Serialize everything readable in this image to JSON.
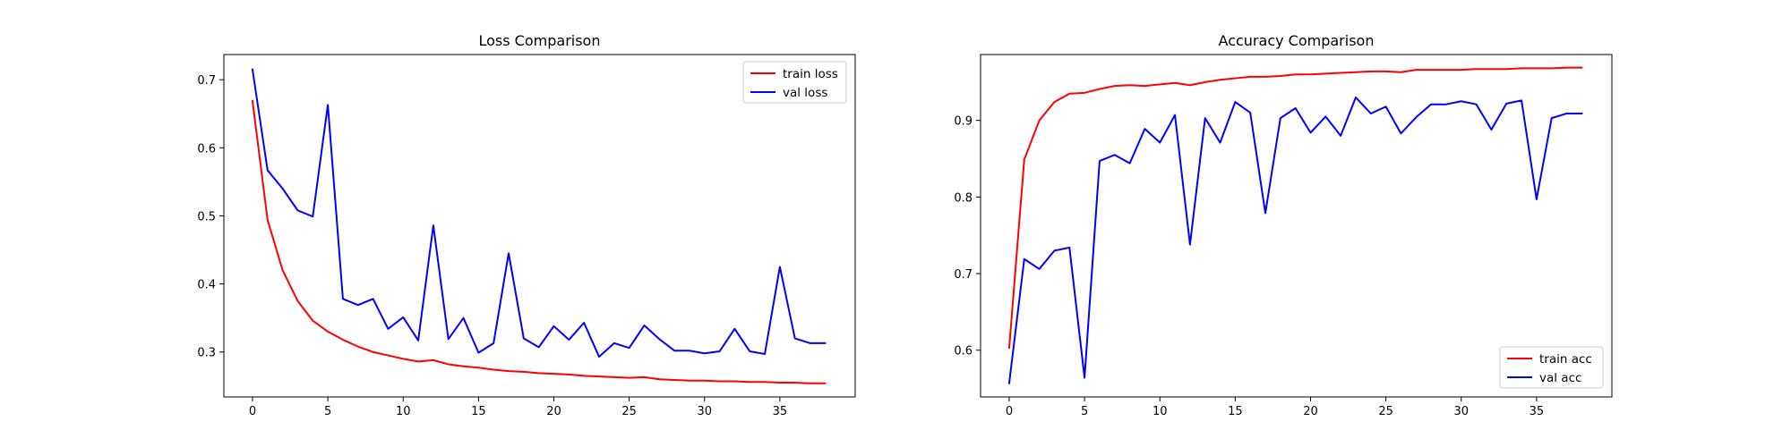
{
  "chart_data": [
    {
      "type": "line",
      "title": "Loss Comparison",
      "xlabel": "",
      "ylabel": "",
      "xlim": [
        -1.9,
        40
      ],
      "ylim": [
        0.234,
        0.737
      ],
      "xticks": [
        0,
        5,
        10,
        15,
        20,
        25,
        30,
        35
      ],
      "yticks": [
        0.3,
        0.4,
        0.5,
        0.6,
        0.7
      ],
      "grid": false,
      "legend": {
        "position": "top-right"
      },
      "x": [
        0,
        1,
        2,
        3,
        4,
        5,
        6,
        7,
        8,
        9,
        10,
        11,
        12,
        13,
        14,
        15,
        16,
        17,
        18,
        19,
        20,
        21,
        22,
        23,
        24,
        25,
        26,
        27,
        28,
        29,
        30,
        31,
        32,
        33,
        34,
        35,
        36,
        37,
        38
      ],
      "series": [
        {
          "name": "train loss",
          "color": "#ff0000",
          "values": [
            0.669,
            0.494,
            0.42,
            0.375,
            0.346,
            0.33,
            0.318,
            0.308,
            0.3,
            0.295,
            0.29,
            0.286,
            0.288,
            0.282,
            0.279,
            0.277,
            0.274,
            0.272,
            0.271,
            0.269,
            0.268,
            0.267,
            0.265,
            0.264,
            0.263,
            0.262,
            0.263,
            0.26,
            0.259,
            0.258,
            0.258,
            0.257,
            0.257,
            0.256,
            0.256,
            0.255,
            0.255,
            0.254,
            0.254
          ]
        },
        {
          "name": "val loss",
          "color": "#0000ff",
          "values": [
            0.715,
            0.567,
            0.54,
            0.508,
            0.499,
            0.663,
            0.378,
            0.369,
            0.378,
            0.334,
            0.351,
            0.317,
            0.486,
            0.319,
            0.35,
            0.299,
            0.313,
            0.445,
            0.32,
            0.307,
            0.338,
            0.318,
            0.343,
            0.293,
            0.313,
            0.306,
            0.339,
            0.319,
            0.302,
            0.302,
            0.298,
            0.301,
            0.334,
            0.301,
            0.297,
            0.425,
            0.32,
            0.313,
            0.313
          ]
        }
      ]
    },
    {
      "type": "line",
      "title": "Accuracy Comparison",
      "xlabel": "",
      "ylabel": "",
      "xlim": [
        -1.9,
        40
      ],
      "ylim": [
        0.539,
        0.986
      ],
      "xticks": [
        0,
        5,
        10,
        15,
        20,
        25,
        30,
        35
      ],
      "yticks": [
        0.6,
        0.7,
        0.8,
        0.9
      ],
      "grid": false,
      "legend": {
        "position": "bottom-right"
      },
      "x": [
        0,
        1,
        2,
        3,
        4,
        5,
        6,
        7,
        8,
        9,
        10,
        11,
        12,
        13,
        14,
        15,
        16,
        17,
        18,
        19,
        20,
        21,
        22,
        23,
        24,
        25,
        26,
        27,
        28,
        29,
        30,
        31,
        32,
        33,
        34,
        35,
        36,
        37,
        38
      ],
      "series": [
        {
          "name": "train acc",
          "color": "#ff0000",
          "values": [
            0.603,
            0.849,
            0.9,
            0.924,
            0.935,
            0.936,
            0.941,
            0.945,
            0.946,
            0.945,
            0.947,
            0.949,
            0.946,
            0.95,
            0.953,
            0.955,
            0.957,
            0.957,
            0.958,
            0.96,
            0.96,
            0.961,
            0.962,
            0.963,
            0.964,
            0.964,
            0.963,
            0.966,
            0.966,
            0.966,
            0.966,
            0.967,
            0.967,
            0.967,
            0.968,
            0.968,
            0.968,
            0.969,
            0.969
          ]
        },
        {
          "name": "val acc",
          "color": "#0000ff",
          "values": [
            0.557,
            0.719,
            0.706,
            0.73,
            0.734,
            0.564,
            0.847,
            0.855,
            0.844,
            0.889,
            0.871,
            0.907,
            0.738,
            0.903,
            0.871,
            0.924,
            0.91,
            0.779,
            0.903,
            0.916,
            0.884,
            0.905,
            0.88,
            0.93,
            0.909,
            0.918,
            0.883,
            0.904,
            0.921,
            0.921,
            0.925,
            0.921,
            0.888,
            0.922,
            0.926,
            0.797,
            0.903,
            0.909,
            0.909
          ]
        }
      ]
    }
  ]
}
